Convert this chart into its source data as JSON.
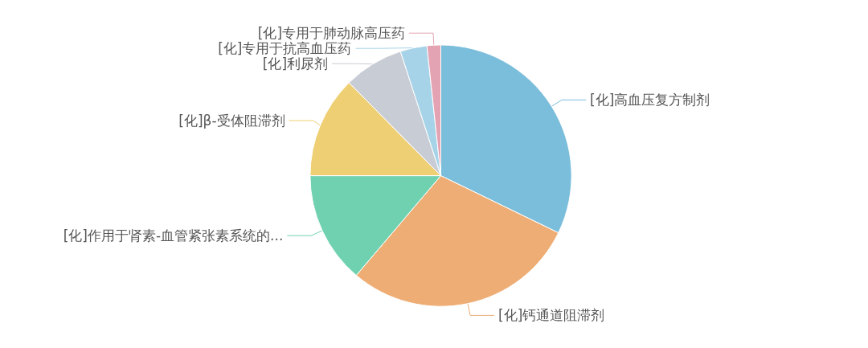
{
  "chart_data": {
    "type": "pie",
    "categories": [
      "[化]高血压复方制剂",
      "[化]钙通道阻滞剂",
      "[化]作用于肾素-血管紧张素系统的...",
      "[化]β-受体阻滞剂",
      "[化]利尿剂",
      "[化]专用于抗高血压药",
      "[化]专用于肺动脉高压药"
    ],
    "values": [
      32.2,
      29.0,
      13.8,
      12.6,
      7.4,
      3.3,
      1.7
    ],
    "colors": [
      "#7bbedb",
      "#eead74",
      "#6fd1b0",
      "#efcf74",
      "#c8ccd4",
      "#a7d3e8",
      "#e4a3b3"
    ],
    "legend": false
  }
}
